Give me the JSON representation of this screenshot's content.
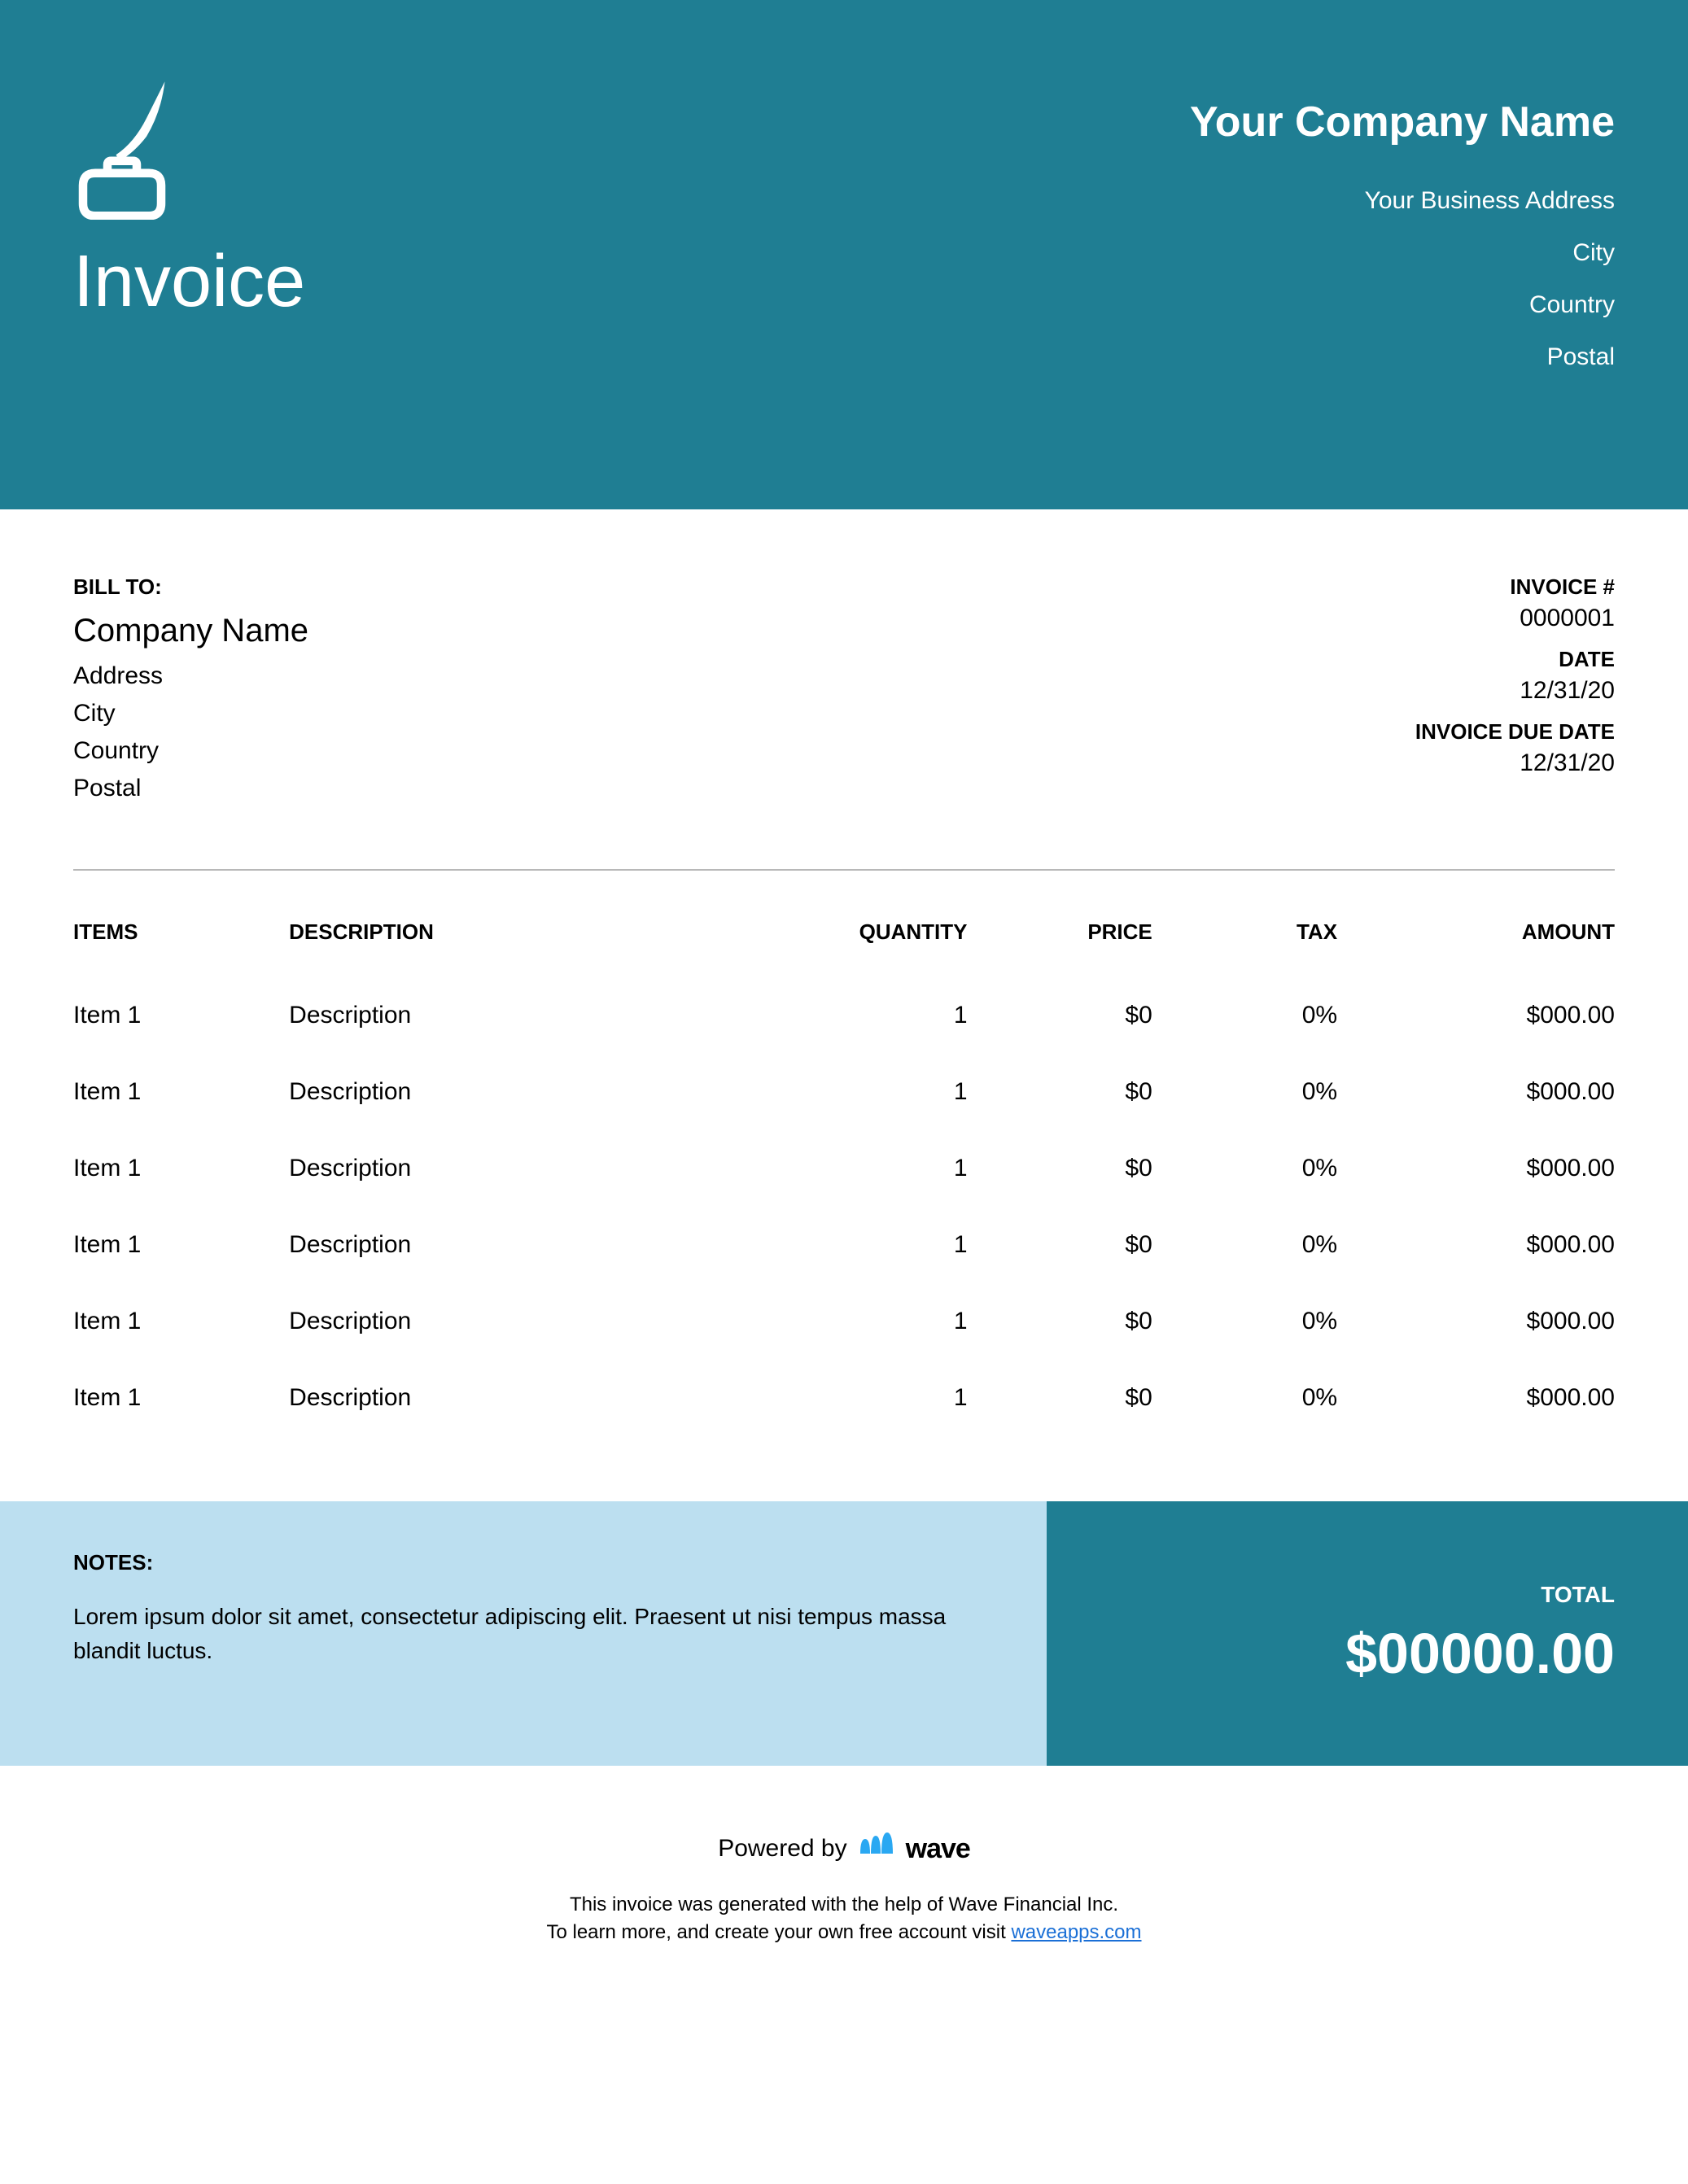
{
  "colors": {
    "header_bg": "#1f7e93",
    "header_text": "#ffffff",
    "body_bg": "#ffffff",
    "body_text": "#000000",
    "notes_bg": "#bcdff0",
    "total_bg": "#1f7e93",
    "total_text": "#ffffff",
    "divider": "#b8b8b8",
    "link": "#1a6fd6",
    "wave_icon": "#2aa8f2"
  },
  "header": {
    "doc_title": "Invoice",
    "company_name": "Your Company Name",
    "address_lines": [
      "Your Business Address",
      "City",
      "Country",
      "Postal"
    ]
  },
  "bill_to": {
    "label": "BILL TO:",
    "company": "Company Name",
    "lines": [
      "Address",
      "City",
      "Country",
      "Postal"
    ]
  },
  "invoice_meta": {
    "number_label": "INVOICE #",
    "number": "0000001",
    "date_label": "DATE",
    "date": "12/31/20",
    "due_label": "INVOICE DUE DATE",
    "due": "12/31/20"
  },
  "table": {
    "columns": {
      "items": "ITEMS",
      "description": "DESCRIPTION",
      "quantity": "QUANTITY",
      "price": "PRICE",
      "tax": "TAX",
      "amount": "AMOUNT"
    },
    "rows": [
      {
        "item": "Item 1",
        "description": "Description",
        "quantity": "1",
        "price": "$0",
        "tax": "0%",
        "amount": "$000.00"
      },
      {
        "item": "Item 1",
        "description": "Description",
        "quantity": "1",
        "price": "$0",
        "tax": "0%",
        "amount": "$000.00"
      },
      {
        "item": "Item 1",
        "description": "Description",
        "quantity": "1",
        "price": "$0",
        "tax": "0%",
        "amount": "$000.00"
      },
      {
        "item": "Item 1",
        "description": "Description",
        "quantity": "1",
        "price": "$0",
        "tax": "0%",
        "amount": "$000.00"
      },
      {
        "item": "Item 1",
        "description": "Description",
        "quantity": "1",
        "price": "$0",
        "tax": "0%",
        "amount": "$000.00"
      },
      {
        "item": "Item 1",
        "description": "Description",
        "quantity": "1",
        "price": "$0",
        "tax": "0%",
        "amount": "$000.00"
      }
    ]
  },
  "notes": {
    "label": "NOTES:",
    "text": "Lorem ipsum dolor sit amet, consectetur adipiscing elit. Praesent ut nisi tempus massa blandit luctus."
  },
  "total": {
    "label": "TOTAL",
    "value": "$00000.00"
  },
  "powered": {
    "prefix": "Powered by",
    "brand": "wave",
    "line1": "This invoice was generated with the help of Wave Financial Inc.",
    "line2_prefix": "To learn more, and create your own free account visit ",
    "link_text": "waveapps.com"
  }
}
